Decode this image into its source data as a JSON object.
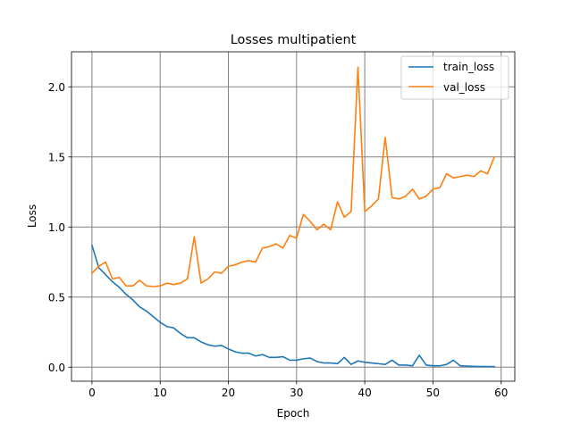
{
  "chart_data": {
    "type": "line",
    "title": "Losses multipatient",
    "xlabel": "Epoch",
    "ylabel": "Loss",
    "xlim": [
      -3.0,
      62.0
    ],
    "ylim": [
      -0.1,
      2.25
    ],
    "xticks": [
      0,
      10,
      20,
      30,
      40,
      50,
      60
    ],
    "xtick_labels": [
      "0",
      "10",
      "20",
      "30",
      "40",
      "50",
      "60"
    ],
    "yticks": [
      0.0,
      0.5,
      1.0,
      1.5,
      2.0
    ],
    "ytick_labels": [
      "0.0",
      "0.5",
      "1.0",
      "1.5",
      "2.0"
    ],
    "grid": true,
    "legend_position": "top-right",
    "x": [
      0,
      1,
      2,
      3,
      4,
      5,
      6,
      7,
      8,
      9,
      10,
      11,
      12,
      13,
      14,
      15,
      16,
      17,
      18,
      19,
      20,
      21,
      22,
      23,
      24,
      25,
      26,
      27,
      28,
      29,
      30,
      31,
      32,
      33,
      34,
      35,
      36,
      37,
      38,
      39,
      40,
      41,
      42,
      43,
      44,
      45,
      46,
      47,
      48,
      49,
      50,
      51,
      52,
      53,
      54,
      55,
      56,
      57,
      58,
      59
    ],
    "series": [
      {
        "name": "train_loss",
        "color": "#1f77b4",
        "values": [
          0.87,
          0.71,
          0.66,
          0.61,
          0.57,
          0.52,
          0.48,
          0.43,
          0.4,
          0.36,
          0.32,
          0.29,
          0.28,
          0.24,
          0.21,
          0.21,
          0.18,
          0.16,
          0.15,
          0.155,
          0.13,
          0.11,
          0.1,
          0.1,
          0.08,
          0.09,
          0.07,
          0.07,
          0.075,
          0.05,
          0.05,
          0.06,
          0.065,
          0.04,
          0.03,
          0.03,
          0.025,
          0.07,
          0.02,
          0.045,
          0.035,
          0.03,
          0.025,
          0.02,
          0.05,
          0.015,
          0.015,
          0.01,
          0.085,
          0.015,
          0.01,
          0.01,
          0.02,
          0.05,
          0.01,
          0.008,
          0.006,
          0.005,
          0.005,
          0.004
        ]
      },
      {
        "name": "val_loss",
        "color": "#ff7f0e",
        "values": [
          0.67,
          0.72,
          0.75,
          0.63,
          0.64,
          0.58,
          0.58,
          0.62,
          0.58,
          0.575,
          0.58,
          0.6,
          0.59,
          0.6,
          0.63,
          0.93,
          0.6,
          0.63,
          0.68,
          0.67,
          0.72,
          0.73,
          0.75,
          0.76,
          0.75,
          0.85,
          0.86,
          0.88,
          0.85,
          0.94,
          0.92,
          1.09,
          1.04,
          0.98,
          1.02,
          0.98,
          1.18,
          1.07,
          1.11,
          2.14,
          1.11,
          1.15,
          1.2,
          1.64,
          1.21,
          1.2,
          1.22,
          1.27,
          1.2,
          1.22,
          1.27,
          1.28,
          1.38,
          1.35,
          1.36,
          1.37,
          1.36,
          1.4,
          1.38,
          1.5
        ]
      }
    ]
  }
}
